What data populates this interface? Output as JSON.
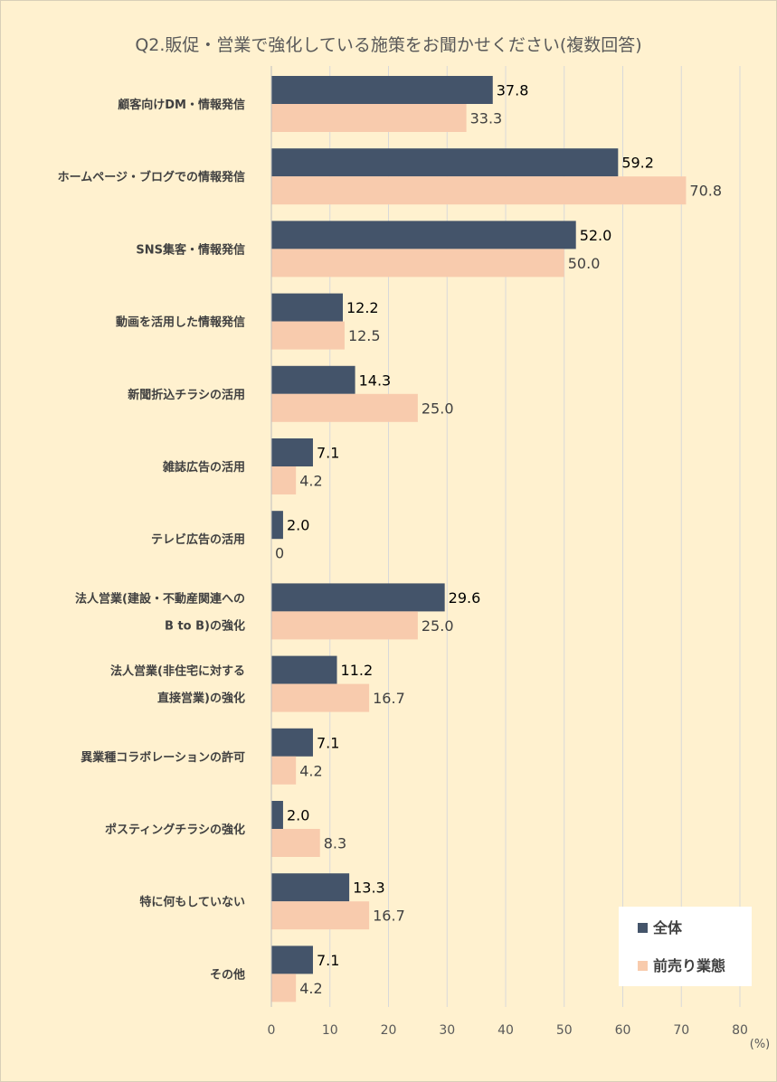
{
  "chart_data": {
    "type": "bar",
    "orientation": "horizontal",
    "title": "Q2.販促・営業で強化している施策をお聞かせください(複数回答)",
    "unit": "(%)",
    "xlim": [
      0,
      80
    ],
    "xticks": [
      0,
      10,
      20,
      30,
      40,
      50,
      60,
      70,
      80
    ],
    "grid": "vertical",
    "legend_position": "bottom-right",
    "categories": [
      [
        "顧客向けDM・情報発信"
      ],
      [
        "ホームページ・ブログでの情報発信"
      ],
      [
        "SNS集客・情報発信"
      ],
      [
        "動画を活用した情報発信"
      ],
      [
        "新聞折込チラシの活用"
      ],
      [
        "雑誌広告の活用"
      ],
      [
        "テレビ広告の活用"
      ],
      [
        "法人営業(建設・不動産関連への",
        "B to B)の強化"
      ],
      [
        "法人営業(非住宅に対する",
        "直接営業)の強化"
      ],
      [
        "異業種コラボレーションの許可"
      ],
      [
        "ポスティングチラシの強化"
      ],
      [
        "特に何もしていない"
      ],
      [
        "その他"
      ]
    ],
    "series": [
      {
        "name": "全体",
        "color": "#44546a",
        "values": [
          37.8,
          59.2,
          52.0,
          12.2,
          14.3,
          7.1,
          2.0,
          29.6,
          11.2,
          7.1,
          2.0,
          13.3,
          7.1
        ],
        "labels": [
          "37.8",
          "59.2",
          "52.0",
          "12.2",
          "14.3",
          "7.1",
          "2.0",
          "29.6",
          "11.2",
          "7.1",
          "2.0",
          "13.3",
          "7.1"
        ]
      },
      {
        "name": "前売り業態",
        "color": "#f8cbad",
        "values": [
          33.3,
          70.8,
          50.0,
          12.5,
          25.0,
          4.2,
          0,
          25.0,
          16.7,
          4.2,
          8.3,
          16.7,
          4.2
        ],
        "labels": [
          "33.3",
          "70.8",
          "50.0",
          "12.5",
          "25.0",
          "4.2",
          "0",
          "25.0",
          "16.7",
          "4.2",
          "8.3",
          "16.7",
          "4.2"
        ]
      }
    ]
  }
}
